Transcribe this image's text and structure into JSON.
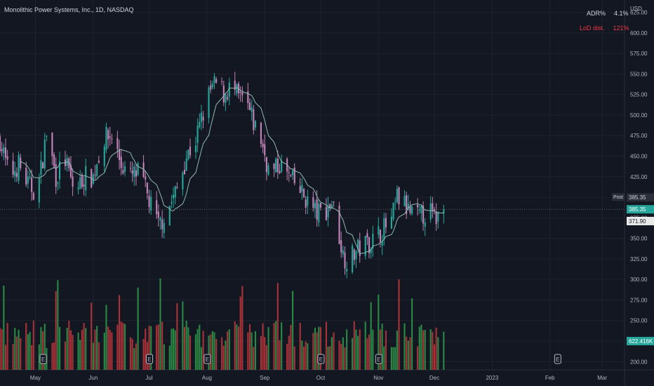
{
  "header": {
    "title": "Monolithic Power Systems, Inc., 1D, NASDAQ",
    "currency": "USD"
  },
  "indicators": {
    "adr": {
      "label": "ADR%",
      "value": "4.1%"
    },
    "lod": {
      "label": "LoD dist.",
      "value": "121%"
    }
  },
  "price_labels": {
    "post_tag": "Post",
    "post_value": "385.35",
    "last_value": "385.35",
    "ma_value": "371.90",
    "volume_value": "622.416K"
  },
  "colors": {
    "background": "#131722",
    "up": "#26a69a",
    "up_vol": "#2e9c4a",
    "down": "#c084b8",
    "down_vol": "#c2373c",
    "ma": "#8fb9b0",
    "grid": "#1e222d",
    "text": "#b2b5be"
  },
  "chart_data": {
    "type": "candlestick",
    "title": "Monolithic Power Systems, Inc., 1D, NASDAQ",
    "y_axis": {
      "ticks": [
        200,
        225,
        250,
        275,
        300,
        325,
        350,
        375,
        400,
        425,
        450,
        475,
        500,
        525,
        550,
        575,
        600,
        625
      ],
      "tick_labels": [
        "200.00",
        "225.00",
        "250.00",
        "275.00",
        "300.00",
        "325.00",
        "350.00",
        "375.00",
        "400.00",
        "425.00",
        "450.00",
        "475.00",
        "500.00",
        "525.00",
        "550.00",
        "575.00",
        "600.00",
        "625.00"
      ],
      "range": [
        190,
        640
      ]
    },
    "x_axis": {
      "labels": [
        "May",
        "Jun",
        "Jul",
        "Aug",
        "Sep",
        "Oct",
        "Nov",
        "Dec",
        "2023",
        "Feb",
        "Mar"
      ],
      "label_days": [
        19,
        50,
        80,
        111,
        142,
        172,
        203,
        233,
        264,
        295,
        323
      ],
      "range": [
        0,
        335
      ]
    },
    "earnings_days": [
      23,
      80,
      111,
      172,
      203,
      299
    ],
    "ohlc_anchors": [
      [
        0,
        470
      ],
      [
        5,
        425
      ],
      [
        10,
        440
      ],
      [
        15,
        415
      ],
      [
        20,
        405
      ],
      [
        25,
        478
      ],
      [
        30,
        425
      ],
      [
        35,
        445
      ],
      [
        40,
        405
      ],
      [
        45,
        425
      ],
      [
        50,
        425
      ],
      [
        55,
        470
      ],
      [
        60,
        475
      ],
      [
        65,
        440
      ],
      [
        70,
        425
      ],
      [
        75,
        430
      ],
      [
        80,
        395
      ],
      [
        85,
        365
      ],
      [
        90,
        385
      ],
      [
        95,
        410
      ],
      [
        100,
        450
      ],
      [
        105,
        470
      ],
      [
        110,
        510
      ],
      [
        113,
        530
      ],
      [
        117,
        540
      ],
      [
        120,
        525
      ],
      [
        124,
        535
      ],
      [
        128,
        520
      ],
      [
        132,
        515
      ],
      [
        136,
        490
      ],
      [
        140,
        470
      ],
      [
        145,
        425
      ],
      [
        150,
        440
      ],
      [
        155,
        425
      ],
      [
        160,
        410
      ],
      [
        165,
        395
      ],
      [
        170,
        380
      ],
      [
        175,
        385
      ],
      [
        178,
        395
      ],
      [
        181,
        365
      ],
      [
        184,
        330
      ],
      [
        187,
        322
      ],
      [
        190,
        332
      ],
      [
        195,
        342
      ],
      [
        200,
        348
      ],
      [
        205,
        360
      ],
      [
        210,
        370
      ],
      [
        213,
        400
      ],
      [
        217,
        390
      ],
      [
        220,
        380
      ],
      [
        225,
        375
      ],
      [
        230,
        385
      ],
      [
        233,
        373
      ],
      [
        238,
        385
      ]
    ],
    "last_close": 385.35,
    "ma": {
      "label": "MA",
      "last_value": 371.9,
      "period": 10
    },
    "volume_last": "622.416K"
  }
}
